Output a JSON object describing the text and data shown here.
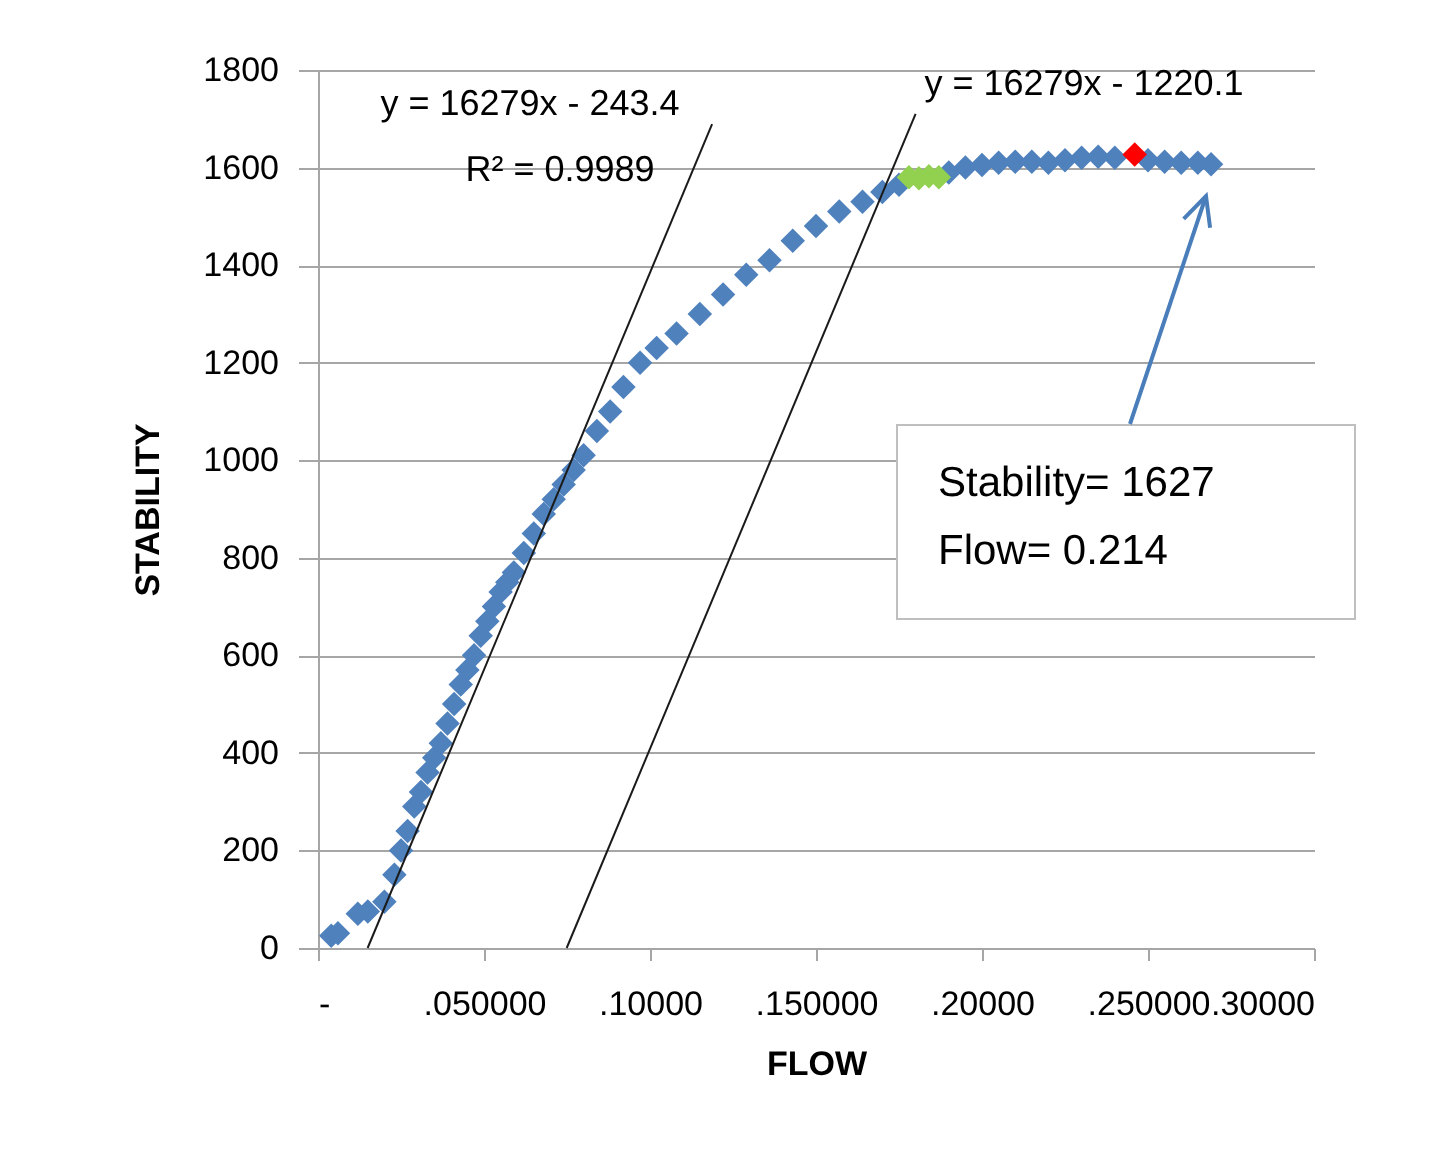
{
  "chart_data": {
    "type": "scatter",
    "xlabel": "FLOW",
    "ylabel": "STABILITY",
    "xlim": [
      0,
      0.3
    ],
    "ylim": [
      0,
      1800
    ],
    "xticks": [
      {
        "value": 0,
        "label": "-"
      },
      {
        "value": 0.05,
        "label": ".050000"
      },
      {
        "value": 0.1,
        "label": ".10000"
      },
      {
        "value": 0.15,
        "label": ".150000"
      },
      {
        "value": 0.2,
        "label": ".20000"
      },
      {
        "value": 0.25,
        "label": ".250000"
      },
      {
        "value": 0.3,
        "label": ".30000"
      }
    ],
    "yticks": [
      0,
      200,
      400,
      600,
      800,
      1000,
      1200,
      1400,
      1600,
      1800
    ],
    "grid": "y",
    "series": [
      {
        "color": "#4f81bd",
        "marker": "diamond",
        "x": [
          0.004,
          0.006,
          0.012,
          0.015,
          0.02,
          0.023,
          0.025,
          0.027,
          0.029,
          0.031,
          0.033,
          0.035,
          0.037,
          0.039,
          0.041,
          0.043,
          0.045,
          0.047,
          0.049,
          0.051,
          0.053,
          0.055,
          0.057,
          0.059,
          0.062,
          0.065,
          0.068,
          0.071,
          0.074,
          0.077,
          0.08,
          0.084,
          0.088,
          0.092,
          0.097,
          0.102,
          0.108,
          0.115,
          0.122,
          0.129,
          0.136,
          0.143,
          0.15,
          0.157,
          0.164,
          0.17,
          0.175,
          0.19,
          0.195,
          0.2,
          0.205,
          0.21,
          0.215,
          0.22,
          0.225,
          0.23,
          0.235,
          0.24,
          0.25,
          0.255,
          0.26,
          0.265,
          0.269
        ],
        "values": [
          25,
          30,
          70,
          75,
          95,
          150,
          200,
          240,
          290,
          320,
          360,
          390,
          420,
          460,
          500,
          540,
          570,
          600,
          640,
          670,
          700,
          730,
          750,
          770,
          810,
          850,
          890,
          920,
          950,
          980,
          1010,
          1060,
          1100,
          1150,
          1200,
          1230,
          1260,
          1300,
          1340,
          1380,
          1410,
          1450,
          1480,
          1510,
          1530,
          1550,
          1565,
          1590,
          1600,
          1605,
          1610,
          1612,
          1612,
          1610,
          1615,
          1620,
          1622,
          1620,
          1615,
          1612,
          1610,
          1610,
          1607
        ]
      },
      {
        "color": "#92d050",
        "marker": "diamond",
        "x": [
          0.178,
          0.181,
          0.184,
          0.187
        ],
        "values": [
          1580,
          1578,
          1582,
          1580
        ]
      },
      {
        "color": "#ff0000",
        "marker": "diamond",
        "x": [
          0.246
        ],
        "values": [
          1627
        ]
      },
      {
        "type": "line",
        "color": "#1a1a1a",
        "x": [
          0.01495,
          0.1187
        ],
        "values": [
          0,
          1689
        ]
      },
      {
        "type": "line",
        "color": "#1a1a1a",
        "x": [
          0.0749,
          0.18
        ],
        "values": [
          0,
          1710
        ]
      }
    ],
    "annotations": [
      "y = 16279x - 243.4",
      "R² = 0.9989",
      "y = 16279x - 1220.1",
      "Stability= 1627",
      "Flow= 0.214"
    ]
  }
}
